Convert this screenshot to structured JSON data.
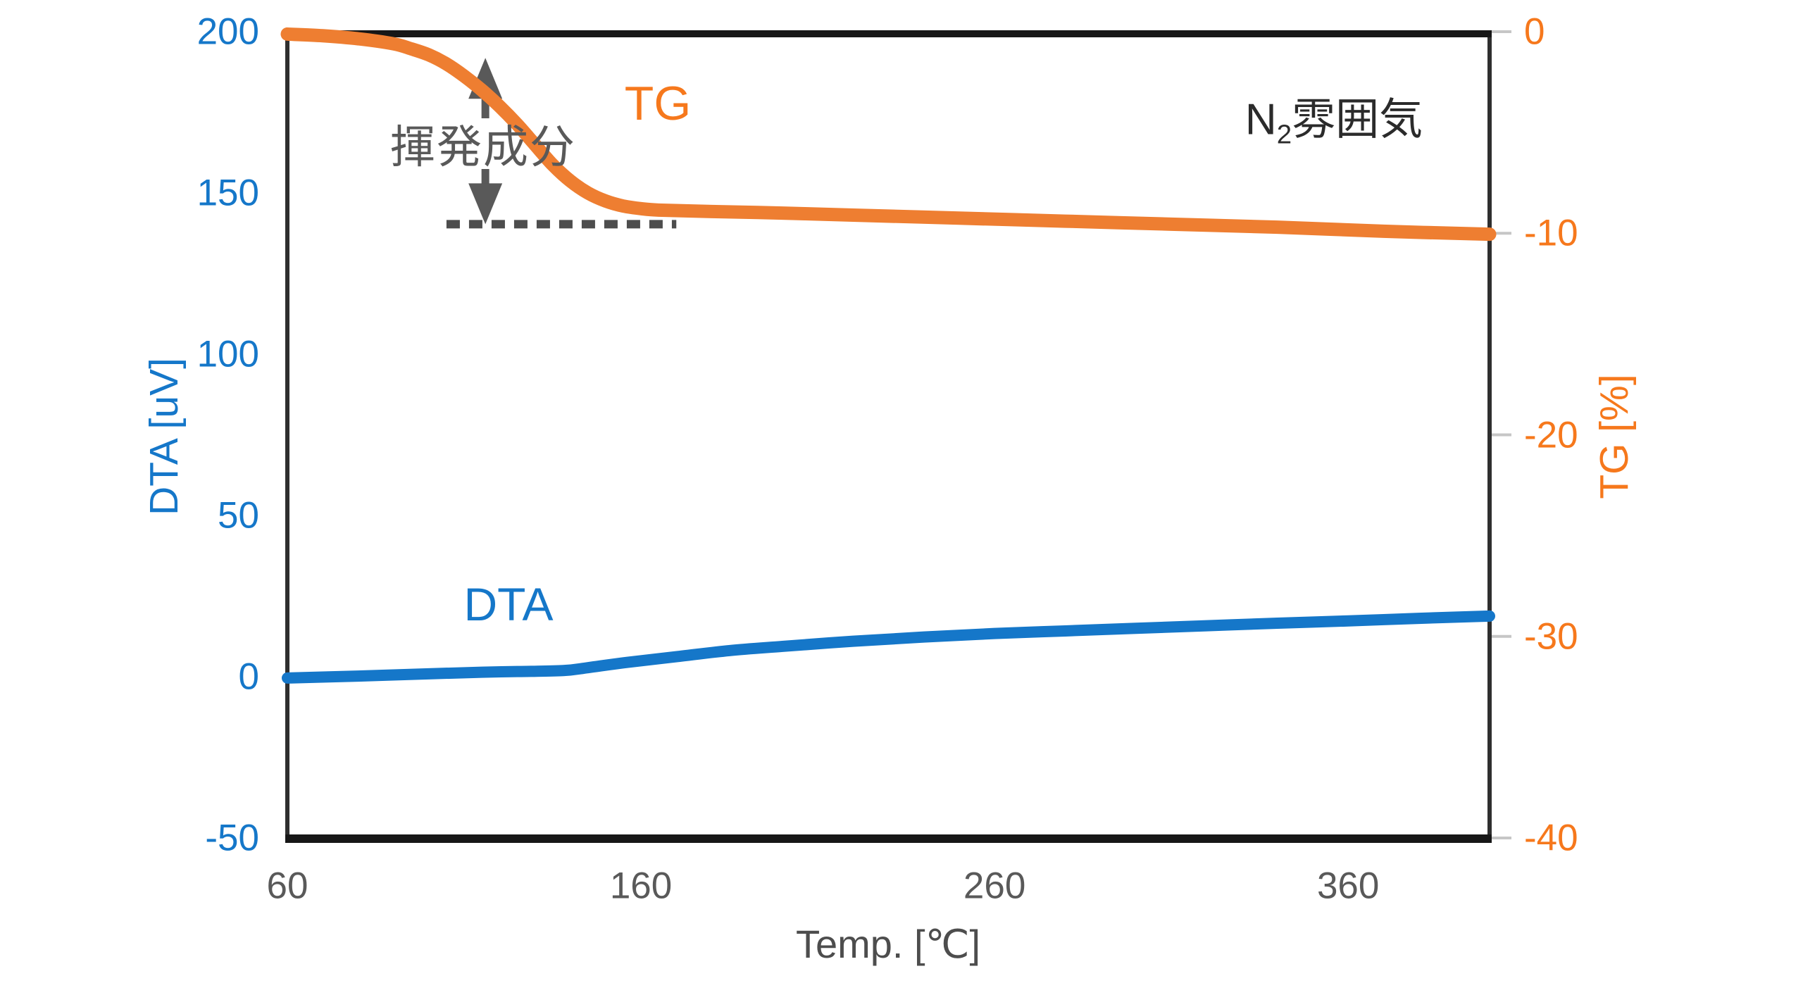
{
  "chart_data": {
    "type": "line",
    "title": "",
    "grid": false,
    "legend_position": "none",
    "atmosphere": {
      "prefix": "N",
      "subscript": "2",
      "suffix": "雰囲気"
    },
    "axes": {
      "x": {
        "label": "Temp. [℃]",
        "range": [
          60,
          400
        ],
        "ticks": [
          60,
          160,
          260,
          360
        ],
        "color": "#595959"
      },
      "left": {
        "label": "DTA [uV]",
        "range": [
          -50,
          200
        ],
        "ticks": [
          200,
          150,
          100,
          50,
          0,
          -50
        ],
        "color": "#1577c9"
      },
      "right": {
        "label": "TG [%]",
        "range": [
          -40,
          0
        ],
        "ticks": [
          0,
          -10,
          -20,
          -30,
          -40
        ],
        "color": "#f6781c"
      }
    },
    "series": [
      {
        "name": "TG",
        "axis": "right",
        "color": "#ee7e31",
        "label_color": "#f6781c",
        "points": {
          "x": [
            60,
            70,
            80,
            90,
            95,
            100,
            105,
            110,
            115,
            120,
            125,
            130,
            135,
            140,
            145,
            150,
            155,
            160,
            165,
            180,
            200,
            220,
            250,
            280,
            310,
            340,
            370,
            400
          ],
          "y": [
            -0.12,
            -0.2,
            -0.35,
            -0.6,
            -0.85,
            -1.15,
            -1.6,
            -2.2,
            -2.9,
            -3.7,
            -4.6,
            -5.6,
            -6.6,
            -7.4,
            -8.0,
            -8.4,
            -8.65,
            -8.78,
            -8.85,
            -8.92,
            -9.0,
            -9.1,
            -9.25,
            -9.4,
            -9.55,
            -9.7,
            -9.9,
            -10.05
          ]
        }
      },
      {
        "name": "DTA",
        "axis": "left",
        "color": "#1577c9",
        "label_color": "#1577c9",
        "points": {
          "x": [
            60,
            80,
            100,
            115,
            125,
            138,
            145,
            155,
            170,
            185,
            200,
            220,
            240,
            260,
            280,
            300,
            320,
            340,
            360,
            380,
            400
          ],
          "y": [
            -0.4,
            0.2,
            0.9,
            1.4,
            1.6,
            1.9,
            2.8,
            4.3,
            6.2,
            8.1,
            9.4,
            11.0,
            12.3,
            13.4,
            14.2,
            15.0,
            15.8,
            16.6,
            17.3,
            18.1,
            18.8
          ]
        }
      }
    ],
    "annotation": {
      "text": "揮発成分",
      "color": "#595959",
      "arrow_x_temp": 116,
      "arrow_top_tg": -1.3,
      "baseline_tg": -9.55,
      "baseline_span_temp": [
        105,
        170
      ],
      "baseline_color": "#4d4d4d"
    }
  }
}
